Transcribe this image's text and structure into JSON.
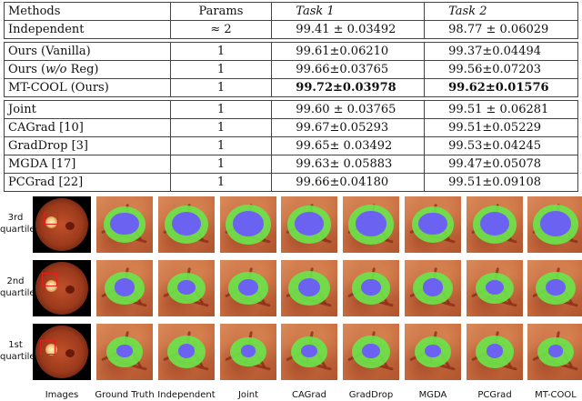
{
  "table": {
    "headers": [
      "Methods",
      "Params",
      "Task 1",
      "Task 2"
    ],
    "group1": [
      {
        "method": "Independent",
        "params": "≈ 2",
        "task1": "99.41 ± 0.03492",
        "task2": "98.77 ± 0.06029"
      }
    ],
    "group2": [
      {
        "method": "Ours (Vanilla)",
        "params": "1",
        "task1": "99.61±0.06210",
        "task2": "99.37±0.04494"
      },
      {
        "method_prefix": "Ours (",
        "method_italic": "w/o",
        "method_suffix": " Reg)",
        "params": "1",
        "task1": "99.66±0.03765",
        "task2": "99.56±0.07203"
      },
      {
        "method": "MT-COOL (Ours)",
        "params": "1",
        "task1": "99.72±0.03978",
        "task2": "99.62±0.01576",
        "best": true
      }
    ],
    "group3": [
      {
        "method": "Joint",
        "params": "1",
        "task1": "99.60 ± 0.03765",
        "task2": "99.51 ± 0.06281"
      },
      {
        "method": "CAGrad [10]",
        "params": "1",
        "task1": "99.67±0.05293",
        "task2": "99.51±0.05229"
      },
      {
        "method": "GradDrop [3]",
        "params": "1",
        "task1": "99.65± 0.03492",
        "task2": "99.53±0.04245"
      },
      {
        "method": "MGDA [17]",
        "params": "1",
        "task1": "99.63± 0.05883",
        "task2": "99.47±0.05078"
      },
      {
        "method": "PCGrad [22]",
        "params": "1",
        "task1": "99.66±0.04180",
        "task2": "99.51±0.09108"
      }
    ]
  },
  "figure": {
    "rows": [
      {
        "line1": "3rd",
        "line2": "quartile",
        "cup": [
          0.45,
          0.35,
          0.62,
          0.5
        ],
        "ring": [
          0.78,
          0.68
        ]
      },
      {
        "line1": "2nd",
        "line2": "quartile",
        "cup": [
          0.3,
          0.22,
          0.42,
          0.35
        ],
        "ring": [
          0.7,
          0.58
        ]
      },
      {
        "line1": "1st",
        "line2": "quartile",
        "cup": [
          0.22,
          0.18,
          0.34,
          0.28
        ],
        "ring": [
          0.66,
          0.56
        ]
      }
    ],
    "columns": [
      "Images",
      "Ground Truth",
      "Independent",
      "Joint",
      "CAGrad",
      "GradDrop",
      "MGDA",
      "PCGrad",
      "MT-COOL"
    ],
    "colors": {
      "optic_disc": "#6be34a",
      "optic_cup": "#6b62f2",
      "box": "#e0201a"
    }
  }
}
